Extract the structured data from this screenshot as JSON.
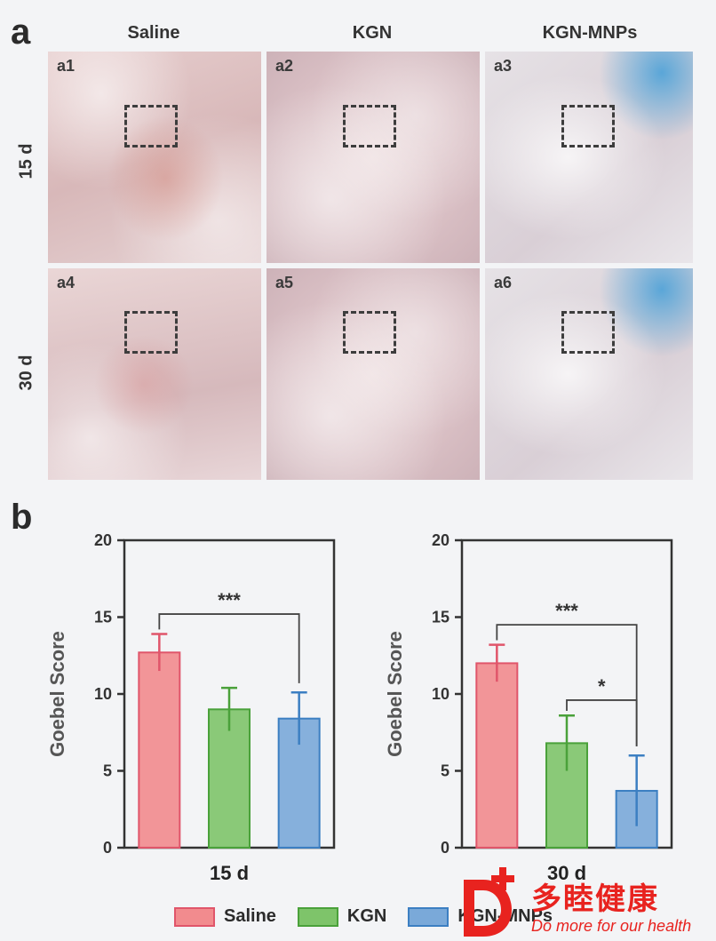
{
  "panel_a": {
    "letter": "a",
    "columns": [
      "Saline",
      "KGN",
      "KGN-MNPs"
    ],
    "rows": [
      "15 d",
      "30 d"
    ],
    "images": [
      "a1",
      "a2",
      "a3",
      "a4",
      "a5",
      "a6"
    ]
  },
  "panel_b": {
    "letter": "b"
  },
  "chart_data": [
    {
      "type": "bar",
      "title": "15 d",
      "ylabel": "Goebel Score",
      "ylim": [
        0,
        20
      ],
      "yticks": [
        0,
        5,
        10,
        15,
        20
      ],
      "categories": [
        "Saline",
        "KGN",
        "KGN-MNPs"
      ],
      "values": [
        12.7,
        9.0,
        8.4
      ],
      "errors": [
        1.2,
        1.4,
        1.7
      ],
      "colors": [
        "#f28b8e",
        "#7ec46a",
        "#7aa9d9"
      ],
      "significance": [
        {
          "from": 0,
          "to": 2,
          "label": "***"
        }
      ]
    },
    {
      "type": "bar",
      "title": "30 d",
      "ylabel": "Goebel Score",
      "ylim": [
        0,
        20
      ],
      "yticks": [
        0,
        5,
        10,
        15,
        20
      ],
      "categories": [
        "Saline",
        "KGN",
        "KGN-MNPs"
      ],
      "values": [
        12.0,
        6.8,
        3.7
      ],
      "errors": [
        1.2,
        1.8,
        2.3
      ],
      "colors": [
        "#f28b8e",
        "#7ec46a",
        "#7aa9d9"
      ],
      "significance": [
        {
          "from": 0,
          "to": 2,
          "label": "***"
        },
        {
          "from": 1,
          "to": 2,
          "label": "*"
        }
      ]
    }
  ],
  "legend": [
    {
      "label": "Saline",
      "color": "#f28b8e",
      "stroke": "#e0556a"
    },
    {
      "label": "KGN",
      "color": "#7ec46a",
      "stroke": "#4aa13a"
    },
    {
      "label": "KGN-MNPs",
      "color": "#7aa9d9",
      "stroke": "#3c7fc2"
    }
  ],
  "watermark": {
    "brand": "多睦健康",
    "slogan": "Do more for our health"
  }
}
